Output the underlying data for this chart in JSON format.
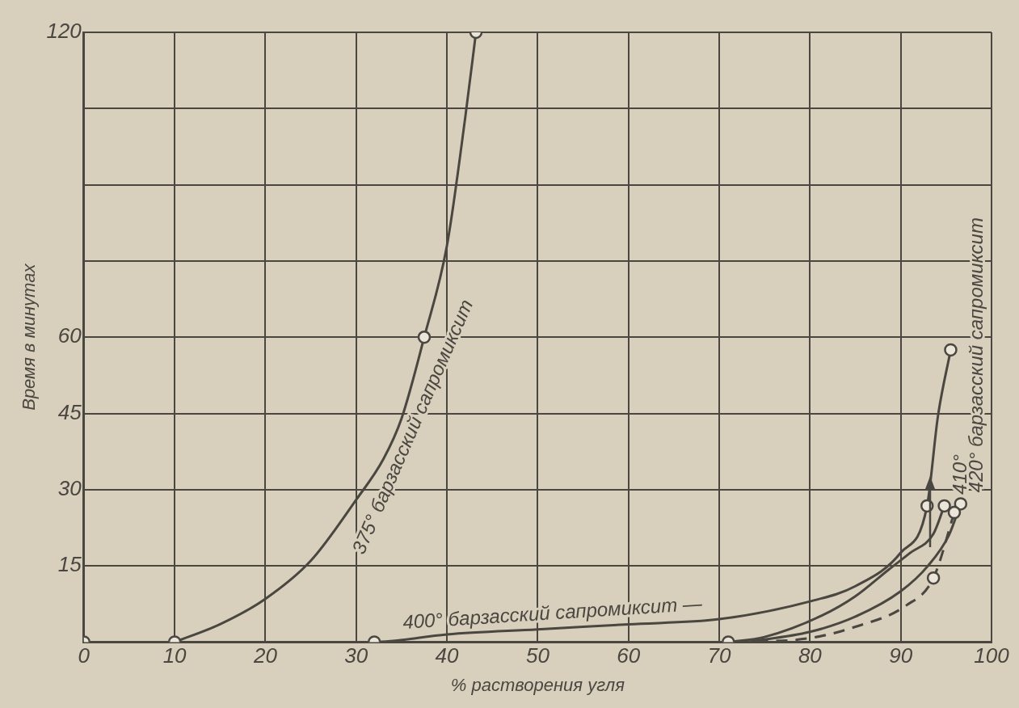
{
  "chart_data": {
    "type": "line",
    "xlabel": "% растворения угля",
    "ylabel": "Время в минутах",
    "xlim": [
      0,
      100
    ],
    "xticks": [
      0,
      10,
      20,
      30,
      40,
      50,
      60,
      70,
      80,
      90,
      100
    ],
    "ylim": [
      0,
      120
    ],
    "yticks": [
      {
        "value": 0,
        "label": null
      },
      15,
      30,
      45,
      60,
      {
        "value": 75,
        "label": null
      },
      {
        "value": 90,
        "label": null
      },
      {
        "value": 105,
        "label": null
      },
      120
    ],
    "grid": true,
    "marker": "none",
    "line_style": "solid",
    "series": [
      {
        "name": "375° барзасский сапромиксит",
        "color": "#4a4740",
        "x": [
          10,
          15,
          20,
          25,
          30,
          33,
          35,
          37.5,
          40,
          42,
          43.2
        ],
        "values": [
          0,
          3.5,
          8.5,
          16,
          28,
          36,
          44,
          60,
          78,
          103,
          120
        ]
      },
      {
        "name": "400° барзасский сапромиксит —",
        "color": "#4a4740",
        "x": [
          0,
          32,
          40,
          50,
          60,
          70,
          80,
          85,
          90,
          92.9,
          94.1,
          95.5
        ],
        "values": [
          0,
          0,
          1.5,
          2.5,
          3.5,
          4.5,
          8,
          11,
          17.6,
          26.8,
          44.5,
          57.5
        ]
      },
      {
        "name": "410°",
        "color": "#4a4740",
        "x": [
          71,
          75,
          81.3,
          85,
          88.7,
          91,
          93.6,
          94.8
        ],
        "values": [
          0,
          1,
          5.2,
          9,
          14.3,
          17.5,
          21.3,
          26.8
        ]
      },
      {
        "name": "420° барзасский сапромиксит",
        "color": "#4a4740",
        "x": [
          73,
          80,
          85,
          90,
          93,
          95.3,
          96.6
        ],
        "values": [
          0,
          2,
          5,
          10,
          15,
          21,
          27.2
        ]
      },
      {
        "color": "#4a4740",
        "line_style": "dashed",
        "x": [
          72,
          79.7,
          85,
          90.6,
          93.6,
          95.9
        ],
        "values": [
          0,
          0.7,
          3,
          7.2,
          12.6,
          25.5
        ]
      },
      {
        "type": "scatter",
        "color": "#4a4740",
        "marker": "circle",
        "x": [
          0,
          10,
          32,
          71,
          37.5,
          43.2,
          92.9,
          95.5,
          94.8,
          96.6,
          93.6,
          95.9
        ],
        "values": [
          0,
          0,
          0,
          0,
          60,
          120,
          26.8,
          57.5,
          26.8,
          27.2,
          12.6,
          25.5
        ]
      }
    ]
  }
}
